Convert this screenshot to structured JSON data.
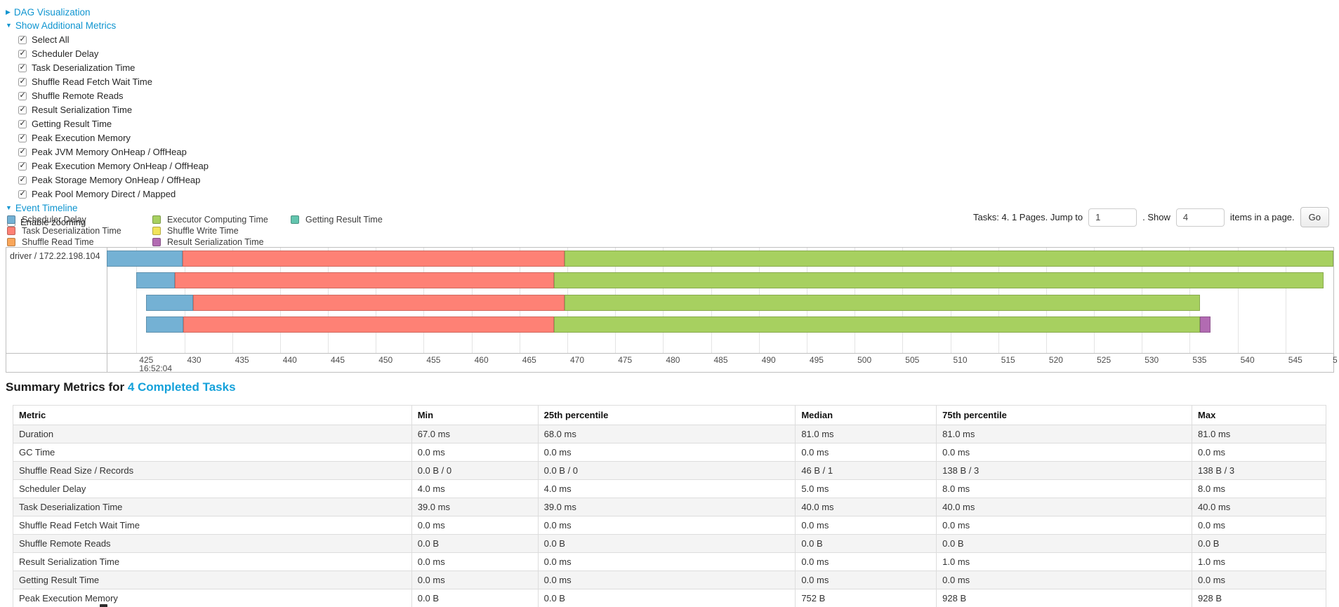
{
  "sections": {
    "dag": {
      "label": "DAG Visualization",
      "state": "collapsed"
    },
    "additional_metrics": {
      "label": "Show Additional Metrics",
      "state": "expanded"
    },
    "event_timeline": {
      "label": "Event Timeline",
      "state": "expanded"
    }
  },
  "metric_checkboxes": [
    {
      "label": "Select All",
      "checked": true
    },
    {
      "label": "Scheduler Delay",
      "checked": true
    },
    {
      "label": "Task Deserialization Time",
      "checked": true
    },
    {
      "label": "Shuffle Read Fetch Wait Time",
      "checked": true
    },
    {
      "label": "Shuffle Remote Reads",
      "checked": true
    },
    {
      "label": "Result Serialization Time",
      "checked": true
    },
    {
      "label": "Getting Result Time",
      "checked": true
    },
    {
      "label": "Peak Execution Memory",
      "checked": true
    },
    {
      "label": "Peak JVM Memory OnHeap / OffHeap",
      "checked": true
    },
    {
      "label": "Peak Execution Memory OnHeap / OffHeap",
      "checked": true
    },
    {
      "label": "Peak Storage Memory OnHeap / OffHeap",
      "checked": true
    },
    {
      "label": "Peak Pool Memory Direct / Mapped",
      "checked": true
    }
  ],
  "enable_zooming": {
    "label": "Enable zooming",
    "checked": false
  },
  "legend": {
    "columns": [
      [
        {
          "label": "Scheduler Delay",
          "color": "#74B1D4"
        },
        {
          "label": "Task Deserialization Time",
          "color": "#FE8175"
        },
        {
          "label": "Shuffle Read Time",
          "color": "#F9A65A"
        }
      ],
      [
        {
          "label": "Executor Computing Time",
          "color": "#A7D060"
        },
        {
          "label": "Shuffle Write Time",
          "color": "#F1E35B"
        },
        {
          "label": "Result Serialization Time",
          "color": "#B26BB2"
        }
      ],
      [
        {
          "label": "Getting Result Time",
          "color": "#63C5AE"
        }
      ]
    ]
  },
  "pagination": {
    "prefix": "Tasks: 4. 1 Pages. Jump to",
    "jump_value": "1",
    "mid": ". Show",
    "show_value": "4",
    "suffix": "items in a page.",
    "go_label": "Go"
  },
  "chart_data": {
    "type": "timeline",
    "group_label": "driver / 172.22.198.104",
    "axis": {
      "unit": "ms within second",
      "time_label": "16:52:04",
      "domain_start": 421.9,
      "domain_end": 550.0,
      "ticks": [
        425,
        430,
        435,
        440,
        445,
        450,
        455,
        460,
        465,
        470,
        475,
        480,
        485,
        490,
        495,
        500,
        505,
        510,
        515,
        520,
        525,
        530,
        535,
        540,
        545
      ],
      "edge_label": "5"
    },
    "colors": {
      "scheduler_delay": "#74B1D4",
      "task_deserialization": "#FE8175",
      "executor_computing": "#A7D060",
      "result_serialization": "#B26BB2"
    },
    "tasks": [
      {
        "segments": [
          {
            "metric": "scheduler_delay",
            "start": 421.9,
            "end": 429.8
          },
          {
            "metric": "task_deserialization",
            "start": 429.8,
            "end": 469.7
          },
          {
            "metric": "executor_computing",
            "start": 469.7,
            "end": 550.0
          }
        ]
      },
      {
        "segments": [
          {
            "metric": "scheduler_delay",
            "start": 425.0,
            "end": 429.0
          },
          {
            "metric": "task_deserialization",
            "start": 429.0,
            "end": 468.6
          },
          {
            "metric": "executor_computing",
            "start": 468.6,
            "end": 549.0
          }
        ]
      },
      {
        "segments": [
          {
            "metric": "scheduler_delay",
            "start": 426.0,
            "end": 430.9
          },
          {
            "metric": "task_deserialization",
            "start": 430.9,
            "end": 469.7
          },
          {
            "metric": "executor_computing",
            "start": 469.7,
            "end": 536.1
          }
        ]
      },
      {
        "segments": [
          {
            "metric": "scheduler_delay",
            "start": 426.0,
            "end": 429.9
          },
          {
            "metric": "task_deserialization",
            "start": 429.9,
            "end": 468.6
          },
          {
            "metric": "executor_computing",
            "start": 468.6,
            "end": 536.1
          },
          {
            "metric": "result_serialization",
            "start": 536.1,
            "end": 537.2
          }
        ]
      }
    ]
  },
  "summary": {
    "heading_prefix": "Summary Metrics for ",
    "heading_link": "4 Completed Tasks",
    "columns": [
      "Metric",
      "Min",
      "25th percentile",
      "Median",
      "75th percentile",
      "Max"
    ],
    "column_widths_pct": [
      30.36,
      9.62,
      19.61,
      10.74,
      19.46,
      10.21
    ],
    "rows": [
      [
        "Duration",
        "67.0 ms",
        "68.0 ms",
        "81.0 ms",
        "81.0 ms",
        "81.0 ms"
      ],
      [
        "GC Time",
        "0.0 ms",
        "0.0 ms",
        "0.0 ms",
        "0.0 ms",
        "0.0 ms"
      ],
      [
        "Shuffle Read Size / Records",
        "0.0 B / 0",
        "0.0 B / 0",
        "46 B / 1",
        "138 B / 3",
        "138 B / 3"
      ],
      [
        "Scheduler Delay",
        "4.0 ms",
        "4.0 ms",
        "5.0 ms",
        "8.0 ms",
        "8.0 ms"
      ],
      [
        "Task Deserialization Time",
        "39.0 ms",
        "39.0 ms",
        "40.0 ms",
        "40.0 ms",
        "40.0 ms"
      ],
      [
        "Shuffle Read Fetch Wait Time",
        "0.0 ms",
        "0.0 ms",
        "0.0 ms",
        "0.0 ms",
        "0.0 ms"
      ],
      [
        "Shuffle Remote Reads",
        "0.0 B",
        "0.0 B",
        "0.0 B",
        "0.0 B",
        "0.0 B"
      ],
      [
        "Result Serialization Time",
        "0.0 ms",
        "0.0 ms",
        "0.0 ms",
        "1.0 ms",
        "1.0 ms"
      ],
      [
        "Getting Result Time",
        "0.0 ms",
        "0.0 ms",
        "0.0 ms",
        "0.0 ms",
        "0.0 ms"
      ],
      [
        "Peak Execution Memory",
        "0.0 B",
        "0.0 B",
        "752 B",
        "928 B",
        "928 B"
      ]
    ]
  }
}
